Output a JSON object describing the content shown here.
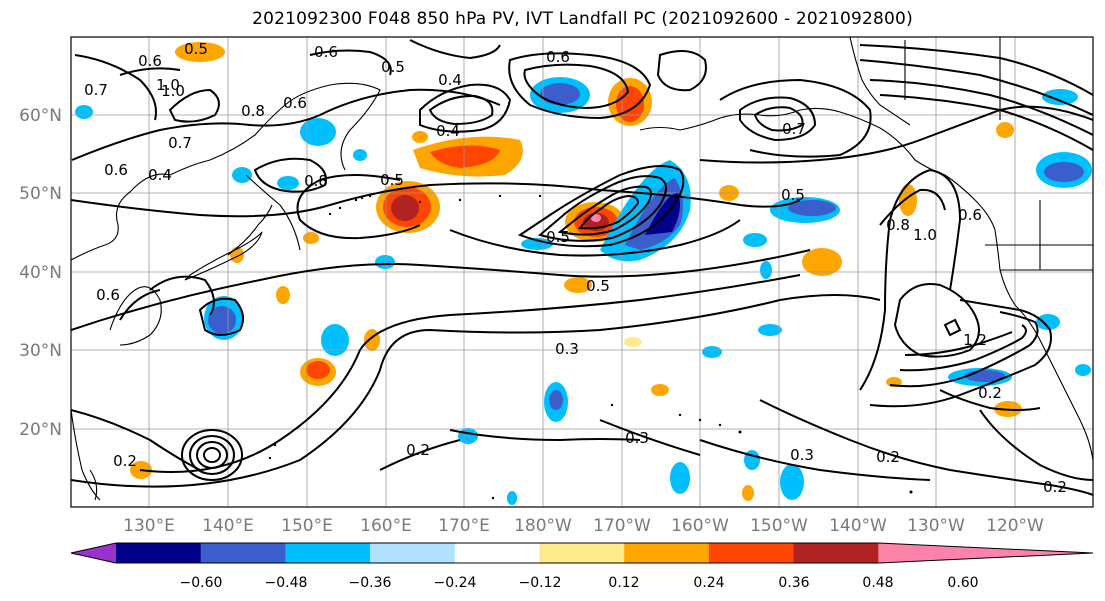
{
  "title": "2021092300 F048 850 hPa PV, IVT Landfall PC (2021092600 - 2021092800)",
  "lat_labels": [
    "60°N",
    "50°N",
    "40°N",
    "30°N",
    "20°N"
  ],
  "lon_labels": [
    "130°E",
    "140°E",
    "150°E",
    "160°E",
    "170°E",
    "180°W",
    "170°W",
    "160°W",
    "150°W",
    "140°W",
    "130°W",
    "120°W"
  ],
  "colorbar": {
    "colors": [
      "#9a32cd",
      "#00008b",
      "#3a5fcd",
      "#00bfff",
      "#b0e2ff",
      "#ffffff",
      "#ffe98a",
      "#ffa500",
      "#ff4500",
      "#b22222",
      "#ff82ab"
    ],
    "tick_labels": [
      "−0.60",
      "−0.48",
      "−0.36",
      "−0.24",
      "−0.12",
      "0.12",
      "0.24",
      "0.36",
      "0.48",
      "0.60"
    ]
  },
  "contour_labels": [
    "0.5",
    "0.6",
    "0.7",
    "0.4",
    "0.5",
    "0.6",
    "0.8",
    "0.6",
    "1.0",
    "0.5",
    "0.6",
    "0.6",
    "1.0",
    "0.7",
    "0.4",
    "0.8",
    "0.4",
    "0.7",
    "0.5",
    "0.5",
    "0.6",
    "0.3",
    "0.2",
    "0.3",
    "0.3",
    "0.2",
    "0.2",
    "0.2",
    "0.5",
    "1.0",
    "0.6",
    "0.8",
    "1.2",
    "0.2"
  ]
}
